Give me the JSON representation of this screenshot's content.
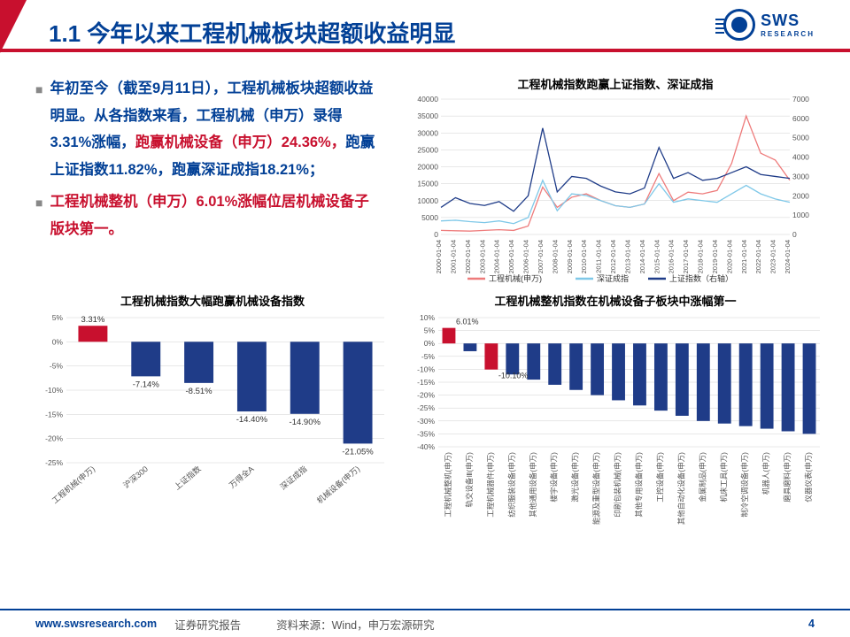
{
  "header": {
    "title": "1.1 今年以来工程机械板块超额收益明显",
    "logo_main": "SWS",
    "logo_sub": "RESEARCH"
  },
  "text": {
    "p1a": "年初至今（截至9月11日），工程机械板块超额收益明显。从各指数来看，工程机械（申万）录得3.31%涨幅，",
    "p1b": "跑赢机械设备（申万）24.36%，",
    "p1c": "跑赢上证指数11.82%，跑赢深证成指18.21%；",
    "p2": "工程机械整机（申万）6.01%涨幅位居机械设备子版块第一。"
  },
  "chart_line": {
    "title": "工程机械指数跑赢上证指数、深证成指",
    "x_labels": [
      "2000-01-04",
      "2001-01-04",
      "2002-01-04",
      "2003-01-04",
      "2004-01-04",
      "2005-01-04",
      "2006-01-04",
      "2007-01-04",
      "2008-01-04",
      "2009-01-04",
      "2010-01-04",
      "2011-01-04",
      "2012-01-04",
      "2013-01-04",
      "2014-01-04",
      "2015-01-04",
      "2016-01-04",
      "2017-01-04",
      "2018-01-04",
      "2019-01-04",
      "2020-01-04",
      "2021-01-04",
      "2022-01-04",
      "2023-01-04",
      "2024-01-04"
    ],
    "left_ticks": [
      0,
      5000,
      10000,
      15000,
      20000,
      25000,
      30000,
      35000,
      40000
    ],
    "right_ticks": [
      0,
      1000,
      2000,
      3000,
      4000,
      5000,
      6000,
      7000
    ],
    "series": [
      {
        "name": "工程机械(申万)",
        "color": "#ee7b7b",
        "axis": "left",
        "data": [
          1200,
          1100,
          1000,
          1200,
          1400,
          1200,
          2500,
          14000,
          8000,
          11000,
          12000,
          10000,
          8500,
          8000,
          9000,
          18000,
          10000,
          12500,
          12000,
          13000,
          21000,
          35000,
          24000,
          22000,
          16000
        ]
      },
      {
        "name": "深证成指",
        "color": "#7fc8e8",
        "axis": "left",
        "data": [
          4000,
          4200,
          3800,
          3500,
          4000,
          3200,
          5000,
          16000,
          7000,
          12000,
          11500,
          10000,
          8500,
          8000,
          9000,
          15000,
          9500,
          10500,
          10000,
          9500,
          12000,
          14500,
          12000,
          10500,
          9500
        ]
      },
      {
        "name": "上证指数（右轴）",
        "color": "#1f3c88",
        "axis": "right",
        "data": [
          1400,
          1900,
          1600,
          1500,
          1700,
          1200,
          2000,
          5500,
          2200,
          3000,
          2900,
          2500,
          2200,
          2100,
          2400,
          4500,
          2900,
          3200,
          2800,
          2900,
          3200,
          3500,
          3100,
          3000,
          2900
        ]
      }
    ]
  },
  "chart_bar1": {
    "title": "工程机械指数大幅跑赢机械设备指数",
    "categories": [
      "工程机械(申万)",
      "沪深300",
      "上证指数",
      "万得全A",
      "深证成指",
      "机械设备(申万)"
    ],
    "values": [
      3.31,
      -7.14,
      -8.51,
      -14.4,
      -14.9,
      -21.05
    ],
    "labels": [
      "3.31%",
      "-7.14%",
      "-8.51%",
      "-14.40%",
      "-14.90%",
      "-21.05%"
    ],
    "colors": [
      "#c8102e",
      "#1f3c88",
      "#1f3c88",
      "#1f3c88",
      "#1f3c88",
      "#1f3c88"
    ],
    "ymin": -25,
    "ymax": 5,
    "ystep": 5
  },
  "chart_bar2": {
    "title": "工程机械整机指数在机械设备子板块中涨幅第一",
    "categories": [
      "工程机械整机(申万)",
      "轨交设备Ⅲ(申万)",
      "工程机械器件(申万)",
      "纺织服装设备(申万)",
      "其他通用设备(申万)",
      "楼宇设备(申万)",
      "激光设备(申万)",
      "能源及重型设备(申万)",
      "印刷包装机械(申万)",
      "其他专用设备(申万)",
      "工控设备(申万)",
      "其他自动化设备(申万)",
      "金属制品(申万)",
      "机床工具(申万)",
      "制冷空调设备(申万)",
      "机器人(申万)",
      "磨具磨料(申万)",
      "仪器仪表(申万)"
    ],
    "values": [
      6.01,
      -3,
      -10.1,
      -12,
      -14,
      -16,
      -18,
      -20,
      -22,
      -24,
      -26,
      -28,
      -30,
      -31,
      -32,
      -33,
      -34,
      -35
    ],
    "highlight_labels": [
      {
        "idx": 0,
        "text": "6.01%"
      },
      {
        "idx": 2,
        "text": "-10.10%"
      }
    ],
    "colors_idx_red": [
      0,
      2
    ],
    "default_color": "#1f3c88",
    "ymin": -40,
    "ymax": 10,
    "ystep": 5
  },
  "footer": {
    "url": "www.swsresearch.com",
    "label1": "证券研究报告",
    "label2": "资料来源：Wind，申万宏源研究",
    "page": "4"
  },
  "style": {
    "accent_red": "#c8102e",
    "accent_blue": "#024096",
    "grid_color": "#d0d0d0",
    "axis_color": "#999",
    "tick_font": 8.5,
    "label_font": 10
  }
}
